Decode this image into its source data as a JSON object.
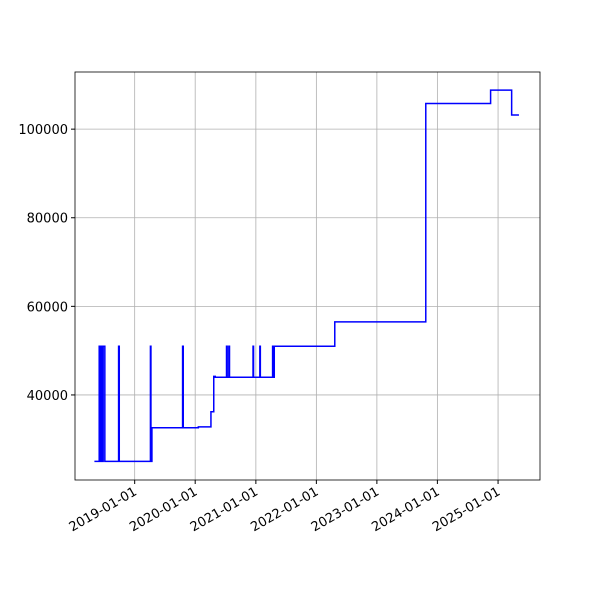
{
  "chart_data": {
    "type": "line",
    "x": [
      "2018-05-03",
      "2018-06-01",
      "2018-06-01",
      "2018-06-08",
      "2018-06-08",
      "2018-06-12",
      "2018-06-12",
      "2018-06-20",
      "2018-06-20",
      "2018-06-25",
      "2018-06-25",
      "2018-07-05",
      "2018-07-05",
      "2018-09-26",
      "2018-09-26",
      "2018-09-30",
      "2018-09-30",
      "2019-04-06",
      "2019-04-06",
      "2019-04-09",
      "2019-04-09",
      "2019-04-15",
      "2019-04-15",
      "2019-10-17",
      "2019-10-17",
      "2019-10-21",
      "2019-10-21",
      "2020-01-20",
      "2020-01-20",
      "2020-04-05",
      "2020-04-05",
      "2020-04-22",
      "2020-04-22",
      "2020-05-01",
      "2020-05-01",
      "2020-07-08",
      "2020-07-08",
      "2020-07-12",
      "2020-07-12",
      "2020-07-22",
      "2020-07-22",
      "2020-07-26",
      "2020-07-26",
      "2020-12-15",
      "2020-12-15",
      "2020-12-18",
      "2020-12-18",
      "2021-01-25",
      "2021-01-25",
      "2021-01-28",
      "2021-01-28",
      "2021-04-12",
      "2021-04-12",
      "2021-04-16",
      "2021-04-16",
      "2021-04-22",
      "2021-04-22",
      "2022-04-22",
      "2022-04-22",
      "2023-10-23",
      "2023-10-23",
      "2024-11-17",
      "2024-11-17",
      "2025-03-24",
      "2025-03-24",
      "2025-05-07"
    ],
    "series": [
      {
        "color": "#0000ff",
        "values": [
          25000,
          25000,
          51000,
          51000,
          25000,
          25000,
          51000,
          51000,
          25000,
          25000,
          51000,
          51000,
          25000,
          25000,
          51000,
          51000,
          25000,
          25000,
          51000,
          51000,
          25000,
          25000,
          32600,
          32600,
          51000,
          51000,
          32600,
          32600,
          32800,
          32800,
          36200,
          36200,
          44200,
          44200,
          44000,
          44000,
          51000,
          51000,
          44000,
          44000,
          51000,
          51000,
          44000,
          44000,
          51000,
          51000,
          44000,
          44000,
          51000,
          51000,
          44000,
          44000,
          51000,
          51000,
          44000,
          44000,
          51000,
          51000,
          56500,
          56500,
          105800,
          105800,
          108800,
          108800,
          103200,
          103200
        ]
      }
    ],
    "xlim": [
      "2018-01-06",
      "2025-09-11"
    ],
    "xticks": [
      "2019-01-01",
      "2020-01-01",
      "2021-01-01",
      "2022-01-01",
      "2023-01-01",
      "2024-01-01",
      "2025-01-01"
    ],
    "ylim": [
      20800,
      112900
    ],
    "yticks": [
      40000,
      60000,
      80000,
      100000
    ],
    "grid": true
  }
}
